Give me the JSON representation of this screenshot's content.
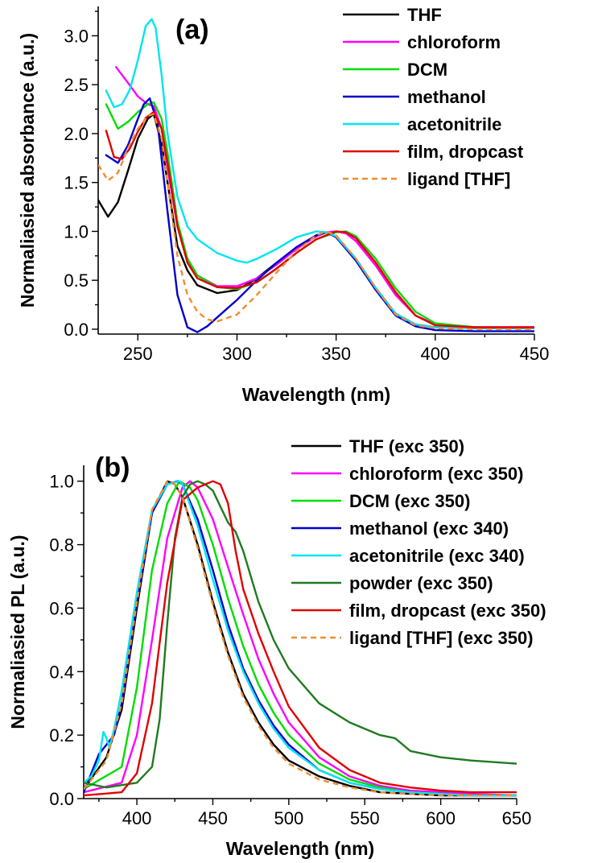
{
  "chart_data": [
    {
      "type": "line",
      "panel_label": "(a)",
      "xlabel": "Wavelength (nm)",
      "ylabel": "Normaliasied absorbance (a.u.)",
      "xlim": [
        230,
        450
      ],
      "ylim": [
        -0.05,
        3.3
      ],
      "xticks": [
        250,
        300,
        350,
        400,
        450
      ],
      "yticks": [
        0.0,
        0.5,
        1.0,
        1.5,
        2.0,
        2.5,
        3.0
      ],
      "xtick_labels": [
        "250",
        "300",
        "350",
        "400",
        "450"
      ],
      "ytick_labels": [
        "0.0",
        "0.5",
        "1.0",
        "1.5",
        "2.0",
        "2.5",
        "3.0"
      ],
      "legend_position": "top-right",
      "series": [
        {
          "name": "THF",
          "color": "#000000",
          "dash": false,
          "x": [
            230,
            235,
            240,
            245,
            250,
            255,
            258,
            262,
            265,
            270,
            275,
            280,
            290,
            300,
            310,
            320,
            330,
            340,
            345,
            350,
            360,
            370,
            380,
            390,
            400,
            420,
            450
          ],
          "y": [
            1.32,
            1.15,
            1.3,
            1.62,
            1.95,
            2.15,
            2.2,
            1.9,
            1.5,
            0.85,
            0.6,
            0.45,
            0.37,
            0.4,
            0.52,
            0.68,
            0.83,
            0.95,
            0.99,
            0.95,
            0.72,
            0.42,
            0.16,
            0.05,
            0.02,
            0.01,
            0.01
          ]
        },
        {
          "name": "chloroform",
          "color": "#ff00ff",
          "dash": false,
          "x": [
            239,
            245,
            250,
            255,
            258,
            262,
            265,
            270,
            275,
            280,
            290,
            300,
            310,
            320,
            330,
            340,
            345,
            350,
            355,
            360,
            370,
            380,
            390,
            400,
            420,
            450
          ],
          "y": [
            2.68,
            2.52,
            2.38,
            2.3,
            2.28,
            2.05,
            1.65,
            1.05,
            0.72,
            0.55,
            0.44,
            0.44,
            0.52,
            0.66,
            0.82,
            0.95,
            0.99,
            1.0,
            0.98,
            0.9,
            0.65,
            0.35,
            0.14,
            0.05,
            0.02,
            0.02
          ]
        },
        {
          "name": "DCM",
          "color": "#00dd00",
          "dash": false,
          "x": [
            234,
            240,
            245,
            250,
            255,
            258,
            262,
            265,
            270,
            275,
            280,
            290,
            300,
            310,
            320,
            330,
            340,
            350,
            355,
            360,
            370,
            380,
            390,
            400,
            420,
            450
          ],
          "y": [
            2.3,
            2.05,
            2.12,
            2.22,
            2.3,
            2.32,
            2.15,
            1.8,
            1.1,
            0.72,
            0.55,
            0.43,
            0.41,
            0.48,
            0.62,
            0.78,
            0.92,
            0.99,
            1.0,
            0.95,
            0.72,
            0.42,
            0.18,
            0.06,
            0.02,
            0.01
          ]
        },
        {
          "name": "methanol",
          "color": "#0000cc",
          "dash": false,
          "x": [
            234,
            240,
            245,
            250,
            253,
            256,
            260,
            265,
            270,
            275,
            280,
            285,
            290,
            300,
            310,
            320,
            330,
            340,
            345,
            350,
            360,
            370,
            380,
            390,
            400,
            420,
            450
          ],
          "y": [
            1.78,
            1.7,
            1.88,
            2.15,
            2.3,
            2.36,
            2.1,
            1.2,
            0.35,
            0.02,
            -0.03,
            0.03,
            0.12,
            0.3,
            0.5,
            0.68,
            0.84,
            0.96,
            0.99,
            0.94,
            0.7,
            0.4,
            0.14,
            0.03,
            -0.01,
            -0.02,
            -0.02
          ]
        },
        {
          "name": "acetonitrile",
          "color": "#00e5ee",
          "dash": false,
          "x": [
            234,
            238,
            242,
            246,
            250,
            254,
            257,
            259,
            262,
            265,
            270,
            275,
            280,
            290,
            300,
            305,
            310,
            320,
            330,
            340,
            345,
            350,
            360,
            370,
            380,
            390,
            400,
            420,
            450
          ],
          "y": [
            2.44,
            2.27,
            2.3,
            2.45,
            2.75,
            3.1,
            3.17,
            3.08,
            2.6,
            2.0,
            1.35,
            1.05,
            0.92,
            0.78,
            0.7,
            0.68,
            0.72,
            0.82,
            0.94,
            1.0,
            0.99,
            0.95,
            0.72,
            0.42,
            0.16,
            0.05,
            0.02,
            0.01,
            0.01
          ]
        },
        {
          "name": "film, dropcast",
          "color": "#e00000",
          "dash": false,
          "x": [
            234,
            238,
            242,
            246,
            250,
            254,
            258,
            262,
            265,
            270,
            275,
            280,
            290,
            300,
            310,
            320,
            330,
            340,
            350,
            355,
            360,
            370,
            380,
            390,
            400,
            420,
            450
          ],
          "y": [
            2.03,
            1.76,
            1.74,
            1.85,
            2.02,
            2.16,
            2.22,
            2.05,
            1.7,
            1.05,
            0.68,
            0.52,
            0.43,
            0.42,
            0.48,
            0.62,
            0.78,
            0.92,
            1.0,
            0.99,
            0.93,
            0.68,
            0.38,
            0.14,
            0.04,
            0.02,
            0.02
          ]
        },
        {
          "name": "ligand [THF]",
          "color": "#f08c30",
          "dash": true,
          "x": [
            230,
            235,
            240,
            245,
            250,
            255,
            258,
            262,
            265,
            270,
            275,
            280,
            285,
            290,
            300,
            310,
            320,
            330,
            340,
            345,
            350,
            360,
            370,
            380,
            390,
            400,
            420,
            450
          ],
          "y": [
            1.68,
            1.52,
            1.6,
            1.85,
            2.05,
            2.18,
            2.2,
            1.95,
            1.5,
            0.75,
            0.35,
            0.18,
            0.1,
            0.08,
            0.15,
            0.35,
            0.58,
            0.8,
            0.96,
            1.0,
            0.96,
            0.72,
            0.42,
            0.15,
            0.04,
            0.01,
            0.0,
            0.0
          ]
        }
      ]
    },
    {
      "type": "line",
      "panel_label": "(b)",
      "xlabel": "Wavelength (nm)",
      "ylabel": "Normaliasied PL (a.u.)",
      "xlim": [
        365,
        650
      ],
      "ylim": [
        0.0,
        1.05
      ],
      "xticks": [
        400,
        450,
        500,
        550,
        600,
        650
      ],
      "yticks": [
        0.0,
        0.2,
        0.4,
        0.6,
        0.8,
        1.0
      ],
      "xtick_labels": [
        "400",
        "450",
        "500",
        "550",
        "600",
        "650"
      ],
      "ytick_labels": [
        "0.0",
        "0.2",
        "0.4",
        "0.6",
        "0.8",
        "1.0"
      ],
      "legend_position": "top-right",
      "series": [
        {
          "name": "THF (exc 350)",
          "color": "#000000",
          "dash": false,
          "x": [
            365,
            380,
            390,
            400,
            410,
            420,
            425,
            430,
            440,
            450,
            460,
            470,
            480,
            490,
            500,
            520,
            540,
            560,
            580,
            600,
            620,
            650
          ],
          "y": [
            0.03,
            0.13,
            0.28,
            0.6,
            0.9,
            1.0,
            0.99,
            0.95,
            0.8,
            0.62,
            0.46,
            0.33,
            0.24,
            0.17,
            0.12,
            0.07,
            0.04,
            0.02,
            0.015,
            0.01,
            0.01,
            0.01
          ]
        },
        {
          "name": "chloroform (exc 350)",
          "color": "#ff00ff",
          "dash": false,
          "x": [
            365,
            390,
            400,
            410,
            420,
            430,
            435,
            440,
            450,
            460,
            470,
            480,
            490,
            500,
            520,
            540,
            560,
            580,
            600,
            620,
            650
          ],
          "y": [
            0.02,
            0.05,
            0.2,
            0.5,
            0.82,
            0.98,
            1.0,
            0.98,
            0.88,
            0.73,
            0.58,
            0.44,
            0.33,
            0.24,
            0.13,
            0.07,
            0.04,
            0.025,
            0.02,
            0.015,
            0.01
          ]
        },
        {
          "name": "DCM (exc 350)",
          "color": "#00dd00",
          "dash": false,
          "x": [
            365,
            390,
            400,
            410,
            420,
            428,
            435,
            440,
            450,
            460,
            470,
            480,
            490,
            500,
            520,
            540,
            560,
            580,
            600,
            620,
            650
          ],
          "y": [
            0.03,
            0.1,
            0.35,
            0.72,
            0.93,
            1.0,
            0.98,
            0.94,
            0.8,
            0.63,
            0.48,
            0.36,
            0.27,
            0.2,
            0.11,
            0.06,
            0.035,
            0.02,
            0.015,
            0.01,
            0.01
          ]
        },
        {
          "name": "methanol (exc 340)",
          "color": "#0000cc",
          "dash": false,
          "x": [
            365,
            375,
            380,
            385,
            390,
            400,
            410,
            420,
            427,
            430,
            440,
            450,
            460,
            470,
            480,
            490,
            500,
            520,
            540,
            560,
            580,
            600,
            620,
            650
          ],
          "y": [
            0.02,
            0.14,
            0.17,
            0.2,
            0.3,
            0.62,
            0.9,
            0.99,
            1.0,
            0.99,
            0.88,
            0.72,
            0.55,
            0.41,
            0.31,
            0.23,
            0.17,
            0.09,
            0.05,
            0.03,
            0.02,
            0.015,
            0.01,
            0.01
          ]
        },
        {
          "name": "acetonitrile (exc 340)",
          "color": "#00e5ee",
          "dash": false,
          "x": [
            365,
            370,
            375,
            378,
            380,
            382,
            385,
            390,
            400,
            410,
            420,
            428,
            430,
            440,
            450,
            460,
            470,
            480,
            490,
            500,
            520,
            540,
            560,
            580,
            600,
            620,
            650
          ],
          "y": [
            0.05,
            0.07,
            0.12,
            0.21,
            0.19,
            0.16,
            0.22,
            0.34,
            0.65,
            0.91,
            0.99,
            1.0,
            0.99,
            0.86,
            0.69,
            0.53,
            0.4,
            0.3,
            0.22,
            0.16,
            0.09,
            0.05,
            0.03,
            0.02,
            0.015,
            0.01,
            0.01
          ]
        },
        {
          "name": "powder (exc 350)",
          "color": "#207a20",
          "dash": false,
          "x": [
            365,
            380,
            400,
            410,
            415,
            420,
            425,
            430,
            435,
            440,
            445,
            450,
            455,
            460,
            465,
            470,
            480,
            490,
            500,
            520,
            540,
            560,
            570,
            580,
            600,
            620,
            650
          ],
          "y": [
            0.05,
            0.035,
            0.05,
            0.1,
            0.25,
            0.55,
            0.82,
            0.95,
            0.99,
            1.0,
            0.99,
            0.97,
            0.92,
            0.87,
            0.84,
            0.78,
            0.62,
            0.5,
            0.41,
            0.3,
            0.24,
            0.2,
            0.19,
            0.15,
            0.13,
            0.12,
            0.11
          ]
        },
        {
          "name": "film, dropcast (exc 350)",
          "color": "#e00000",
          "dash": false,
          "x": [
            365,
            390,
            400,
            410,
            420,
            430,
            440,
            445,
            450,
            455,
            460,
            465,
            470,
            480,
            490,
            500,
            520,
            540,
            560,
            580,
            600,
            620,
            650
          ],
          "y": [
            0.01,
            0.02,
            0.08,
            0.3,
            0.68,
            0.94,
            0.98,
            0.99,
            1.0,
            0.99,
            0.93,
            0.78,
            0.66,
            0.52,
            0.4,
            0.29,
            0.16,
            0.09,
            0.05,
            0.035,
            0.025,
            0.02,
            0.02
          ]
        },
        {
          "name": "ligand [THF] (exc 350)",
          "color": "#f08c30",
          "dash": true,
          "x": [
            365,
            380,
            390,
            400,
            410,
            420,
            425,
            430,
            440,
            450,
            460,
            470,
            480,
            490,
            500,
            520,
            540,
            560,
            580,
            600,
            620,
            650
          ],
          "y": [
            0.03,
            0.12,
            0.3,
            0.62,
            0.91,
            1.0,
            0.99,
            0.95,
            0.79,
            0.61,
            0.45,
            0.32,
            0.23,
            0.16,
            0.11,
            0.06,
            0.035,
            0.02,
            0.015,
            0.01,
            0.01,
            0.01
          ]
        }
      ]
    }
  ]
}
